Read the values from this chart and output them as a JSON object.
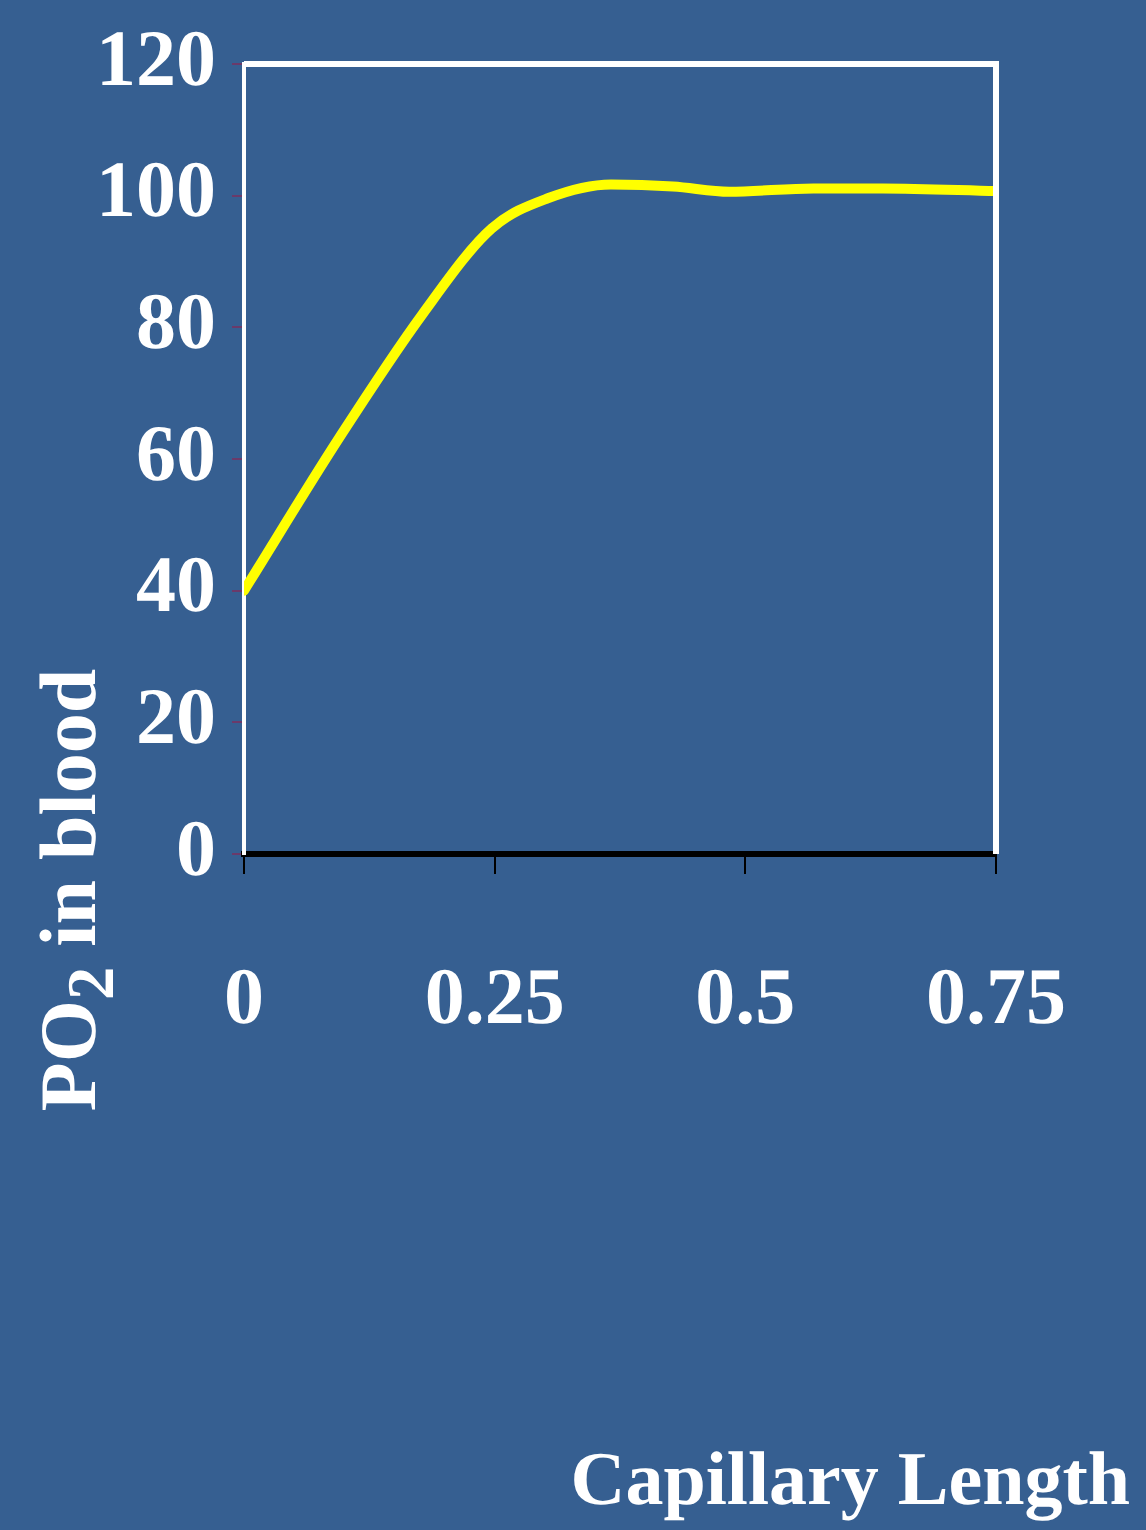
{
  "chart_data": {
    "type": "line",
    "annotations": [
      "Capillary Length"
    ],
    "ylabel": "PO$_{2}$ in blood",
    "x": [
      0,
      0.094,
      0.178,
      0.247,
      0.303,
      0.366,
      0.428,
      0.484,
      0.568,
      0.637,
      0.75
    ],
    "series": [
      {
        "color": "#ffff00",
        "values": [
          40,
          63,
          82,
          95,
          99.6,
          101.7,
          101.4,
          100.6,
          101.1,
          101.1,
          100.7
        ]
      }
    ],
    "xlim": [
      0,
      0.75
    ],
    "xticks": [
      0,
      0.25,
      0.5,
      0.75
    ],
    "ylim": [
      0,
      120
    ],
    "yticks": [
      0,
      20,
      40,
      60,
      80,
      100,
      120
    ],
    "grid": false,
    "legend": false,
    "marker": "none",
    "line_style": "solid"
  }
}
